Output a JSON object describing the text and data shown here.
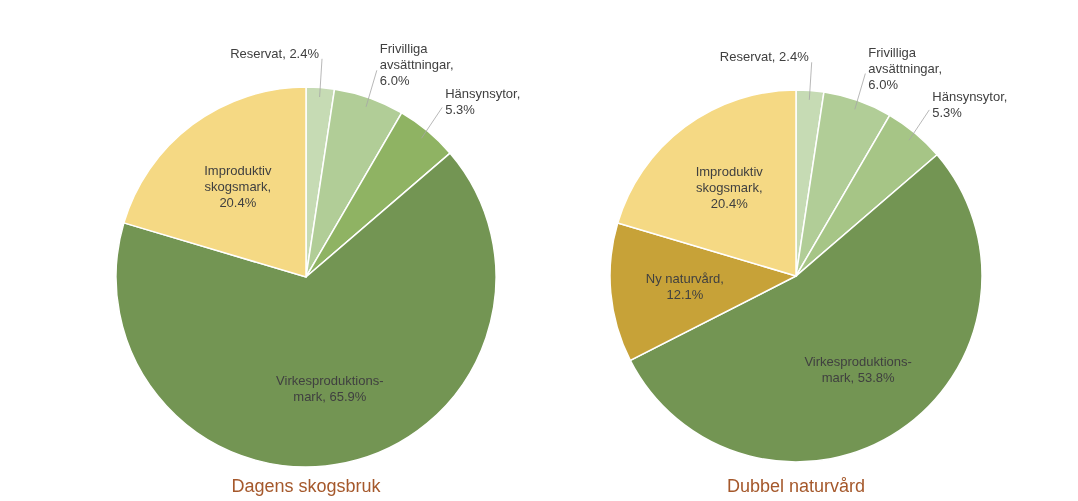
{
  "chart_data": [
    {
      "type": "pie",
      "title": "Dagens skogsbruk",
      "categories": [
        "Reservat",
        "Frivilliga avsättningar",
        "Hänsynsytor",
        "Virkesproduktions-mark",
        "Improduktiv skogsmark"
      ],
      "values": [
        2.4,
        6.0,
        5.3,
        65.9,
        20.4
      ],
      "colors": [
        "#c6dbb4",
        "#b1cd97",
        "#8fb363",
        "#739553",
        "#f5d984"
      ],
      "value_labels": [
        ", 2.4%",
        ", 6.0%",
        ", 5.3%",
        ", 65.9%",
        ", 20.4%"
      ]
    },
    {
      "type": "pie",
      "title": "Dubbel naturvård",
      "categories": [
        "Reservat",
        "Frivilliga avsättningar",
        "Hänsynsytor",
        "Virkesproduktions-mark",
        "Ny naturvård",
        "Improduktiv skogsmark"
      ],
      "values": [
        2.4,
        6.0,
        5.3,
        53.8,
        12.1,
        20.4
      ],
      "colors": [
        "#c6dbb4",
        "#b1cd97",
        "#a6c586",
        "#739553",
        "#c7a238",
        "#f5d984"
      ],
      "value_labels": [
        ", 2.4%",
        ", 6.0%",
        ", 5.3%",
        ", 53.8%",
        ", 12.1%",
        ", 20.4%"
      ]
    }
  ]
}
